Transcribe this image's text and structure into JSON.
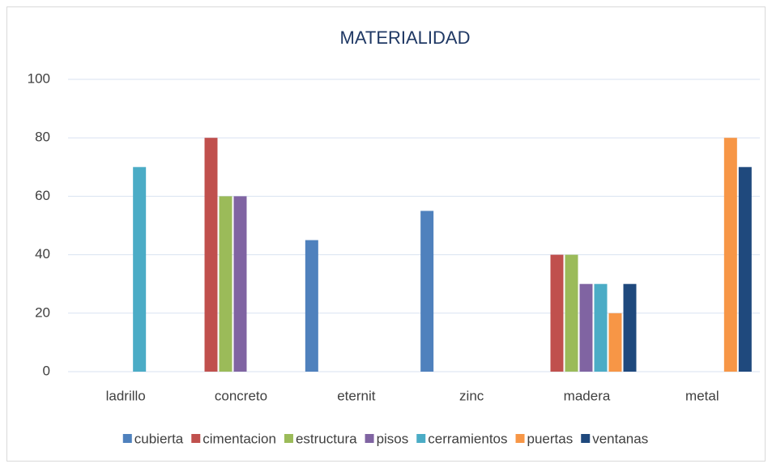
{
  "chart_data": {
    "type": "bar",
    "title": "MATERIALIDAD",
    "categories": [
      "ladrillo",
      "concreto",
      "eternit",
      "zinc",
      "madera",
      "metal"
    ],
    "series": [
      {
        "name": "cubierta",
        "color": "#4f81bd",
        "values": [
          0,
          0,
          45,
          55,
          0,
          0
        ]
      },
      {
        "name": "cimentacion",
        "color": "#c0504d",
        "values": [
          0,
          80,
          0,
          0,
          40,
          0
        ]
      },
      {
        "name": "estructura",
        "color": "#9bbb59",
        "values": [
          0,
          60,
          0,
          0,
          40,
          0
        ]
      },
      {
        "name": "pisos",
        "color": "#8064a2",
        "values": [
          0,
          60,
          0,
          0,
          30,
          0
        ]
      },
      {
        "name": "cerramientos",
        "color": "#4bacc6",
        "values": [
          70,
          0,
          0,
          0,
          30,
          0
        ]
      },
      {
        "name": "puertas",
        "color": "#f79646",
        "values": [
          0,
          0,
          0,
          0,
          20,
          80
        ]
      },
      {
        "name": "ventanas",
        "color": "#1f497d",
        "values": [
          0,
          0,
          0,
          0,
          30,
          70
        ]
      }
    ],
    "ylim": [
      0,
      100
    ],
    "yticks": [
      0,
      20,
      40,
      60,
      80,
      100
    ],
    "grid": true,
    "legend": "bottom"
  }
}
